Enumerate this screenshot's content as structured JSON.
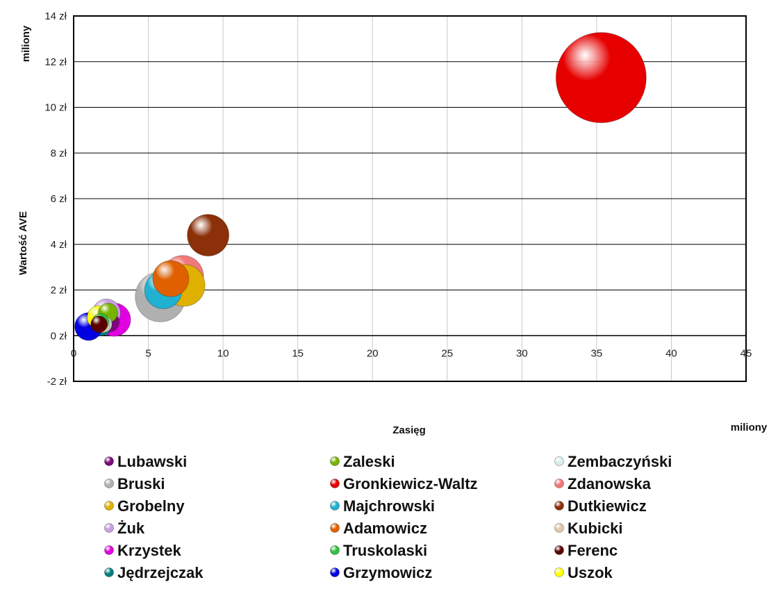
{
  "chart_data": {
    "type": "bubble",
    "xlabel": "Zasięg",
    "x_unit_label": "miliony",
    "ylabel": "Wartość AVE",
    "y_unit_label": "miliony",
    "xlim": [
      0,
      45
    ],
    "ylim": [
      -2,
      14
    ],
    "x_ticks": [
      "0",
      "5",
      "10",
      "15",
      "20",
      "25",
      "30",
      "35",
      "40",
      "45"
    ],
    "y_ticks": [
      "-2 zł",
      "0 zł",
      "2 zł",
      "4 zł",
      "6 zł",
      "8 zł",
      "10 zł",
      "12 zł",
      "14 zł"
    ],
    "grid": true,
    "legend_position": "bottom",
    "series": [
      {
        "name": "Lubawski",
        "color": "#7a0a7a",
        "x": 2.4,
        "y": 0.6,
        "size": 14
      },
      {
        "name": "Zaleski",
        "color": "#77b300",
        "x": 2.3,
        "y": 1.0,
        "size": 14
      },
      {
        "name": "Zembaczyński",
        "color": "#d8eeee",
        "x": 2.0,
        "y": 0.5,
        "size": 12
      },
      {
        "name": "Bruski",
        "color": "#b0b0b0",
        "x": 5.8,
        "y": 1.7,
        "size": 36
      },
      {
        "name": "Gronkiewicz-Waltz",
        "color": "#e60000",
        "x": 35.3,
        "y": 11.3,
        "size": 65
      },
      {
        "name": "Zdanowska",
        "color": "#f07878",
        "x": 7.3,
        "y": 2.6,
        "size": 30
      },
      {
        "name": "Grobelny",
        "color": "#e0b000",
        "x": 7.4,
        "y": 2.2,
        "size": 30
      },
      {
        "name": "Majchrowski",
        "color": "#20b0d0",
        "x": 6.0,
        "y": 2.0,
        "size": 27
      },
      {
        "name": "Dutkiewicz",
        "color": "#8b3008",
        "x": 9.0,
        "y": 4.4,
        "size": 30
      },
      {
        "name": "Żuk",
        "color": "#c8a0e0",
        "x": 2.2,
        "y": 1.0,
        "size": 20
      },
      {
        "name": "Adamowicz",
        "color": "#e06000",
        "x": 6.5,
        "y": 2.5,
        "size": 26
      },
      {
        "name": "Kubicki",
        "color": "#e0c8a8",
        "x": 1.9,
        "y": 0.5,
        "size": 12
      },
      {
        "name": "Krzystek",
        "color": "#e000e0",
        "x": 2.7,
        "y": 0.7,
        "size": 24
      },
      {
        "name": "Truskolaski",
        "color": "#30c040",
        "x": 1.8,
        "y": 0.6,
        "size": 12
      },
      {
        "name": "Ferenc",
        "color": "#5a0000",
        "x": 1.7,
        "y": 0.5,
        "size": 12
      },
      {
        "name": "Jędrzejczak",
        "color": "#007f7f",
        "x": 1.8,
        "y": 0.6,
        "size": 20
      },
      {
        "name": "Grzymowicz",
        "color": "#0000e0",
        "x": 1.0,
        "y": 0.4,
        "size": 20
      },
      {
        "name": "Uszok",
        "color": "#ffff00",
        "x": 1.7,
        "y": 0.8,
        "size": 17
      }
    ]
  },
  "legend_order": [
    "Lubawski",
    "Zaleski",
    "Zembaczyński",
    "Bruski",
    "Gronkiewicz-Waltz",
    "Zdanowska",
    "Grobelny",
    "Majchrowski",
    "Dutkiewicz",
    "Żuk",
    "Adamowicz",
    "Kubicki",
    "Krzystek",
    "Truskolaski",
    "Ferenc",
    "Jędrzejczak",
    "Grzymowicz",
    "Uszok"
  ]
}
